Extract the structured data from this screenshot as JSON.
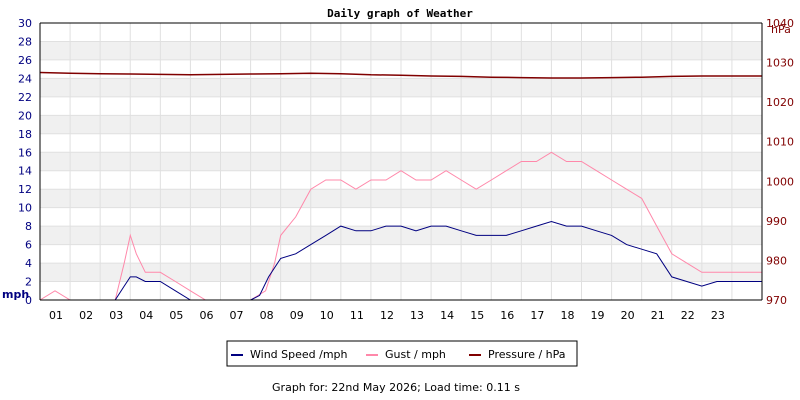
{
  "chart_data": {
    "type": "line",
    "title": "Daily graph of Weather",
    "footer": "Graph for: 22nd May 2026; Load time: 0.11 s",
    "left_axis": {
      "unit": "mph",
      "min": 0,
      "max": 30,
      "step": 2,
      "color": "#000080"
    },
    "right_axis": {
      "unit": "hPa",
      "min": 970,
      "max": 1040,
      "step": 10,
      "color": "#800000"
    },
    "x_axis": {
      "min": 0,
      "max": 24,
      "tick_labels": [
        "01",
        "02",
        "03",
        "04",
        "05",
        "06",
        "07",
        "08",
        "09",
        "10",
        "11",
        "12",
        "13",
        "14",
        "15",
        "16",
        "17",
        "18",
        "19",
        "20",
        "21",
        "22",
        "23"
      ]
    },
    "grid": true,
    "legend_position": "bottom",
    "series": [
      {
        "name": "Wind Speed /mph",
        "axis": "left",
        "color": "#000080",
        "x": [
          0,
          1,
          2,
          2.5,
          2.8,
          3,
          3.2,
          3.5,
          4,
          4.5,
          5,
          5.5,
          6,
          6.5,
          7,
          7.3,
          7.6,
          8,
          8.5,
          9,
          9.5,
          10,
          10.5,
          11,
          11.5,
          12,
          12.5,
          13,
          13.5,
          14,
          14.5,
          15,
          15.5,
          16,
          16.5,
          17,
          17.5,
          18,
          18.5,
          19,
          19.5,
          20,
          20.5,
          21,
          21.5,
          22,
          22.5,
          23,
          23.5,
          24
        ],
        "y": [
          0,
          0,
          0,
          0,
          1.5,
          2.5,
          2.5,
          2,
          2,
          1,
          0,
          0,
          0,
          0,
          0,
          0.5,
          2.5,
          4.5,
          5,
          6,
          7,
          8,
          7.5,
          7.5,
          8,
          8,
          7.5,
          8,
          8,
          7.5,
          7,
          7,
          7,
          7.5,
          8,
          8.5,
          8,
          8,
          7.5,
          7,
          6,
          5.5,
          5,
          2.5,
          2,
          1.5,
          2,
          2,
          2,
          2
        ]
      },
      {
        "name": "Gust / mph",
        "axis": "left",
        "color": "#ff88aa",
        "x": [
          0,
          0.5,
          1,
          2,
          2.5,
          2.8,
          3,
          3.2,
          3.5,
          4,
          4.5,
          5,
          5.5,
          6,
          6.5,
          7,
          7.5,
          7.8,
          8,
          8.5,
          9,
          9.5,
          10,
          10.5,
          11,
          11.5,
          12,
          12.5,
          13,
          13.5,
          14,
          14.5,
          15,
          15.5,
          16,
          16.5,
          17,
          17.5,
          18,
          18.5,
          19,
          19.5,
          20,
          20.5,
          21,
          21.5,
          22,
          22.5,
          23,
          23.5,
          24
        ],
        "y": [
          0,
          1,
          0,
          0,
          0,
          4,
          7,
          5,
          3,
          3,
          2,
          1,
          0,
          0,
          0,
          0,
          1,
          4,
          7,
          9,
          12,
          13,
          13,
          12,
          13,
          13,
          14,
          13,
          13,
          14,
          13,
          12,
          13,
          14,
          15,
          15,
          16,
          15,
          15,
          14,
          13,
          12,
          11,
          8,
          5,
          4,
          3,
          3,
          3,
          3,
          3
        ]
      },
      {
        "name": "Pressure / hPa",
        "axis": "right",
        "color": "#800000",
        "x": [
          0,
          1,
          2,
          3,
          4,
          5,
          6,
          7,
          8,
          9,
          10,
          11,
          12,
          13,
          14,
          15,
          16,
          17,
          18,
          19,
          20,
          21,
          22,
          23,
          24
        ],
        "y": [
          1027.5,
          1027.3,
          1027.2,
          1027.1,
          1027.0,
          1026.9,
          1027.0,
          1027.1,
          1027.2,
          1027.3,
          1027.2,
          1026.9,
          1026.8,
          1026.6,
          1026.5,
          1026.3,
          1026.2,
          1026.1,
          1026.1,
          1026.2,
          1026.3,
          1026.5,
          1026.6,
          1026.6,
          1026.6
        ]
      }
    ]
  }
}
